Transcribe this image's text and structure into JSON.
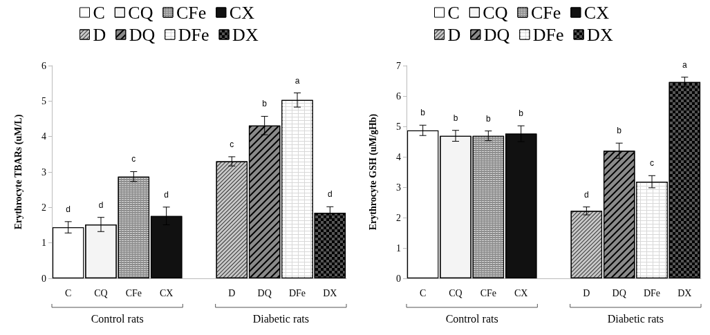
{
  "chart_data": [
    {
      "type": "bar",
      "ylabel": "Erythrocyte TBARs (uM/L)",
      "categories": [
        "C",
        "CQ",
        "CFe",
        "CX",
        null,
        "D",
        "DQ",
        "DFe",
        "DX"
      ],
      "stacked": true,
      "legend": "top",
      "ylim": [
        0,
        6
      ],
      "yticks": [
        0,
        1,
        2,
        3,
        4,
        5,
        6
      ],
      "grid": false,
      "annotations": [
        "Control rats",
        "Diabetic rats"
      ],
      "series": [
        {
          "name": "C",
          "color": "#ffffff",
          "values": [
            1.44,
            null,
            null,
            null,
            null,
            null,
            null,
            null,
            null
          ],
          "errors": [
            0.16,
            null,
            null,
            null,
            null,
            null,
            null,
            null,
            null
          ],
          "value_labels": [
            "d",
            null,
            null,
            null,
            null,
            null,
            null,
            null,
            null
          ]
        },
        {
          "name": "CQ",
          "color": "#f4f4f4",
          "values": [
            null,
            1.52,
            null,
            null,
            null,
            null,
            null,
            null,
            null
          ],
          "errors": [
            null,
            0.2,
            null,
            null,
            null,
            null,
            null,
            null,
            null
          ],
          "value_labels": [
            null,
            "d",
            null,
            null,
            null,
            null,
            null,
            null,
            null
          ]
        },
        {
          "name": "CFe",
          "color": "#8c8c8c",
          "values": [
            null,
            null,
            2.87,
            null,
            null,
            null,
            null,
            null,
            null
          ],
          "errors": [
            null,
            null,
            0.14,
            null,
            null,
            null,
            null,
            null,
            null
          ],
          "value_labels": [
            null,
            null,
            "c",
            null,
            null,
            null,
            null,
            null,
            null
          ]
        },
        {
          "name": "CX",
          "color": "#111111",
          "values": [
            null,
            null,
            null,
            1.76,
            null,
            null,
            null,
            null,
            null
          ],
          "errors": [
            null,
            null,
            null,
            0.25,
            null,
            null,
            null,
            null,
            null
          ],
          "value_labels": [
            null,
            null,
            null,
            "d",
            null,
            null,
            null,
            null,
            null
          ]
        },
        {
          "name": "D",
          "color": "#c8c8c8",
          "values": [
            null,
            null,
            null,
            null,
            null,
            3.3,
            null,
            null,
            null
          ],
          "errors": [
            null,
            null,
            null,
            null,
            null,
            0.13,
            null,
            null,
            null
          ],
          "value_labels": [
            null,
            null,
            null,
            null,
            null,
            "c",
            null,
            null,
            null
          ]
        },
        {
          "name": "DQ",
          "color": "#8a8a8a",
          "values": [
            null,
            null,
            null,
            null,
            null,
            null,
            4.31,
            null,
            null
          ],
          "errors": [
            null,
            null,
            null,
            null,
            null,
            null,
            0.26,
            null,
            null
          ],
          "value_labels": [
            null,
            null,
            null,
            null,
            null,
            null,
            "b",
            null,
            null
          ]
        },
        {
          "name": "DFe",
          "color": "#d8d8d8",
          "values": [
            null,
            null,
            null,
            null,
            null,
            null,
            null,
            5.03,
            null
          ],
          "errors": [
            null,
            null,
            null,
            null,
            null,
            null,
            null,
            0.2,
            null
          ],
          "value_labels": [
            null,
            null,
            null,
            null,
            null,
            null,
            null,
            "a",
            null
          ]
        },
        {
          "name": "DX",
          "color": "#555555",
          "values": [
            null,
            null,
            null,
            null,
            null,
            null,
            null,
            null,
            1.85
          ],
          "errors": [
            null,
            null,
            null,
            null,
            null,
            null,
            null,
            null,
            0.17
          ],
          "value_labels": [
            null,
            null,
            null,
            null,
            null,
            null,
            null,
            null,
            "d"
          ]
        }
      ]
    },
    {
      "type": "bar",
      "ylabel": "Erythrocyte GSH (uM/gHb)",
      "categories": [
        "C",
        "CQ",
        "CFe",
        "CX",
        null,
        "D",
        "DQ",
        "DFe",
        "DX"
      ],
      "stacked": true,
      "legend": "top",
      "ylim": [
        0,
        7
      ],
      "yticks": [
        0,
        1,
        2,
        3,
        4,
        5,
        6,
        7
      ],
      "grid": false,
      "annotations": [
        "Control rats",
        "Diabetic rats"
      ],
      "series": [
        {
          "name": "C",
          "color": "#ffffff",
          "values": [
            4.87,
            null,
            null,
            null,
            null,
            null,
            null,
            null,
            null
          ],
          "errors": [
            0.17,
            null,
            null,
            null,
            null,
            null,
            null,
            null,
            null
          ],
          "value_labels": [
            "b",
            null,
            null,
            null,
            null,
            null,
            null,
            null,
            null
          ]
        },
        {
          "name": "CQ",
          "color": "#f4f4f4",
          "values": [
            null,
            4.69,
            null,
            null,
            null,
            null,
            null,
            null,
            null
          ],
          "errors": [
            null,
            0.18,
            null,
            null,
            null,
            null,
            null,
            null,
            null
          ],
          "value_labels": [
            null,
            "b",
            null,
            null,
            null,
            null,
            null,
            null,
            null
          ]
        },
        {
          "name": "CFe",
          "color": "#8c8c8c",
          "values": [
            null,
            null,
            4.69,
            null,
            null,
            null,
            null,
            null,
            null
          ],
          "errors": [
            null,
            null,
            0.16,
            null,
            null,
            null,
            null,
            null,
            null
          ],
          "value_labels": [
            null,
            null,
            "b",
            null,
            null,
            null,
            null,
            null,
            null
          ]
        },
        {
          "name": "CX",
          "color": "#111111",
          "values": [
            null,
            null,
            null,
            4.76,
            null,
            null,
            null,
            null,
            null
          ],
          "errors": [
            null,
            null,
            null,
            0.26,
            null,
            null,
            null,
            null,
            null
          ],
          "value_labels": [
            null,
            null,
            null,
            "b",
            null,
            null,
            null,
            null,
            null
          ]
        },
        {
          "name": "D",
          "color": "#c8c8c8",
          "values": [
            null,
            null,
            null,
            null,
            null,
            2.22,
            null,
            null,
            null
          ],
          "errors": [
            null,
            null,
            null,
            null,
            null,
            0.13,
            null,
            null,
            null
          ],
          "value_labels": [
            null,
            null,
            null,
            null,
            null,
            "d",
            null,
            null,
            null
          ]
        },
        {
          "name": "DQ",
          "color": "#8a8a8a",
          "values": [
            null,
            null,
            null,
            null,
            null,
            null,
            4.2,
            null,
            null
          ],
          "errors": [
            null,
            null,
            null,
            null,
            null,
            null,
            0.25,
            null,
            null
          ],
          "value_labels": [
            null,
            null,
            null,
            null,
            null,
            null,
            "b",
            null,
            null
          ]
        },
        {
          "name": "DFe",
          "color": "#d8d8d8",
          "values": [
            null,
            null,
            null,
            null,
            null,
            null,
            null,
            3.18,
            null
          ],
          "errors": [
            null,
            null,
            null,
            null,
            null,
            null,
            null,
            0.2,
            null
          ],
          "value_labels": [
            null,
            null,
            null,
            null,
            null,
            null,
            null,
            "c",
            null
          ]
        },
        {
          "name": "DX",
          "color": "#555555",
          "values": [
            null,
            null,
            null,
            null,
            null,
            null,
            null,
            null,
            6.46
          ],
          "errors": [
            null,
            null,
            null,
            null,
            null,
            null,
            null,
            null,
            0.16
          ],
          "value_labels": [
            null,
            null,
            null,
            null,
            null,
            null,
            null,
            null,
            "a"
          ]
        }
      ]
    }
  ]
}
